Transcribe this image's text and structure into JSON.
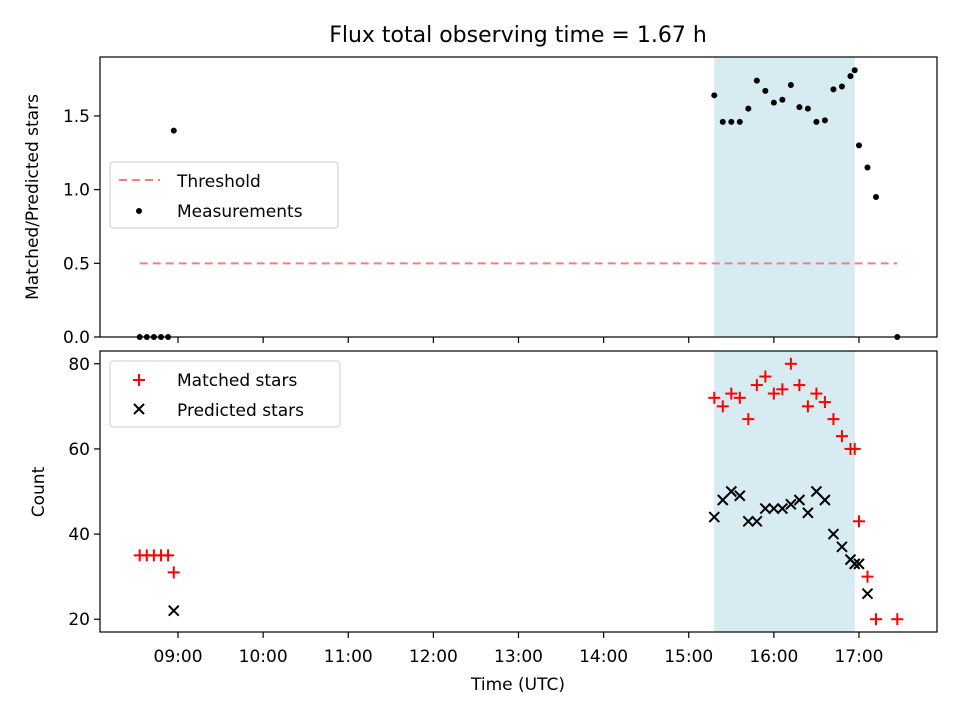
{
  "figure": {
    "title": "Flux total observing time = 1.67 h",
    "xlabel": "Time (UTC)",
    "x_ticks": [
      "09:00",
      "10:00",
      "11:00",
      "12:00",
      "13:00",
      "14:00",
      "15:00",
      "16:00",
      "17:00"
    ]
  },
  "chart_data": [
    {
      "type": "scatter",
      "ylabel": "Matched/Predicted stars",
      "xlim": [
        "08:05",
        "17:55"
      ],
      "ylim": [
        0,
        1.9
      ],
      "y_ticks": [
        "0.0",
        "0.5",
        "1.0",
        "1.5"
      ],
      "legend_position": "center-left",
      "highlight_span": [
        "15:18",
        "16:57"
      ],
      "threshold": {
        "name": "Threshold",
        "y": 0.5,
        "x_range": [
          "08:33",
          "17:27"
        ],
        "color": "#f08080",
        "style": "dashed"
      },
      "series": [
        {
          "name": "Measurements",
          "color": "#000000",
          "marker": "dot",
          "x": [
            "08:33",
            "08:38",
            "08:43",
            "08:48",
            "08:53",
            "08:57",
            "15:18",
            "15:24",
            "15:30",
            "15:36",
            "15:42",
            "15:48",
            "15:54",
            "16:00",
            "16:06",
            "16:12",
            "16:18",
            "16:24",
            "16:30",
            "16:36",
            "16:42",
            "16:48",
            "16:54",
            "16:57",
            "17:00",
            "17:06",
            "17:12",
            "17:27"
          ],
          "y": [
            0.0,
            0.0,
            0.0,
            0.0,
            0.0,
            1.4,
            1.64,
            1.46,
            1.46,
            1.46,
            1.55,
            1.74,
            1.67,
            1.59,
            1.61,
            1.71,
            1.56,
            1.55,
            1.46,
            1.47,
            1.68,
            1.7,
            1.77,
            1.81,
            1.3,
            1.15,
            0.95,
            0.0
          ]
        }
      ]
    },
    {
      "type": "scatter",
      "ylabel": "Count",
      "xlim": [
        "08:05",
        "17:55"
      ],
      "ylim": [
        17,
        83
      ],
      "y_ticks": [
        "20",
        "40",
        "60",
        "80"
      ],
      "legend_position": "top-left",
      "highlight_span": [
        "15:18",
        "16:57"
      ],
      "series": [
        {
          "name": "Matched stars",
          "color": "#ff0000",
          "marker": "plus",
          "x": [
            "08:33",
            "08:38",
            "08:43",
            "08:48",
            "08:53",
            "08:57",
            "15:18",
            "15:24",
            "15:30",
            "15:36",
            "15:42",
            "15:48",
            "15:54",
            "16:00",
            "16:06",
            "16:12",
            "16:18",
            "16:24",
            "16:30",
            "16:36",
            "16:42",
            "16:48",
            "16:54",
            "16:57",
            "17:00",
            "17:06",
            "17:12",
            "17:27"
          ],
          "y": [
            35,
            35,
            35,
            35,
            35,
            31,
            72,
            70,
            73,
            72,
            67,
            75,
            77,
            73,
            74,
            80,
            75,
            70,
            73,
            71,
            67,
            63,
            60,
            60,
            43,
            30,
            20,
            20
          ]
        },
        {
          "name": "Predicted stars",
          "color": "#000000",
          "marker": "x",
          "x": [
            "08:57",
            "15:18",
            "15:24",
            "15:30",
            "15:36",
            "15:42",
            "15:48",
            "15:54",
            "16:00",
            "16:06",
            "16:12",
            "16:18",
            "16:24",
            "16:30",
            "16:36",
            "16:42",
            "16:48",
            "16:54",
            "16:57",
            "17:00",
            "17:06"
          ],
          "y": [
            22,
            44,
            48,
            50,
            49,
            43,
            43,
            46,
            46,
            46,
            47,
            48,
            45,
            50,
            48,
            40,
            37,
            34,
            33,
            33,
            26
          ]
        }
      ]
    }
  ]
}
